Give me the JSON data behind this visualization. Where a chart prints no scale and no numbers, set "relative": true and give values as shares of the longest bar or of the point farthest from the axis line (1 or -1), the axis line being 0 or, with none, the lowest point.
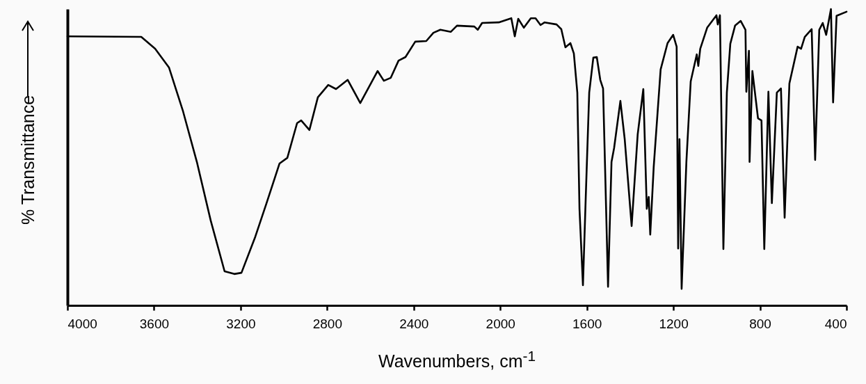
{
  "chart_data": {
    "type": "line",
    "xlabel": "Wavenumbers, cm$^{-1}$",
    "ylabel": "% Transmittance",
    "relative": true,
    "xlim": [
      4000,
      400
    ],
    "xticks": [
      4000,
      3600,
      3200,
      2800,
      2400,
      2000,
      1600,
      1200,
      800,
      400
    ],
    "line_style": "solid",
    "x": [
      4000,
      3659,
      3595,
      3531,
      3466,
      3402,
      3338,
      3274,
      3229,
      3196,
      3132,
      3081,
      3020,
      2984,
      2939,
      2920,
      2882,
      2843,
      2795,
      2759,
      2705,
      2647,
      2567,
      2538,
      2506,
      2470,
      2438,
      2393,
      2342,
      2309,
      2277,
      2229,
      2200,
      2120,
      2104,
      2084,
      2007,
      1949,
      1933,
      1917,
      1891,
      1859,
      1837,
      1814,
      1795,
      1740,
      1718,
      1699,
      1676,
      1660,
      1644,
      1634,
      1618,
      1605,
      1589,
      1570,
      1554,
      1538,
      1525,
      1515,
      1502,
      1486,
      1474,
      1445,
      1425,
      1393,
      1365,
      1339,
      1323,
      1314,
      1307,
      1291,
      1259,
      1227,
      1201,
      1185,
      1178,
      1172,
      1162,
      1140,
      1120,
      1092,
      1085,
      1076,
      1044,
      1001,
      995,
      985,
      969,
      953,
      937,
      915,
      889,
      867,
      863,
      851,
      848,
      835,
      809,
      793,
      780,
      761,
      745,
      722,
      703,
      686,
      664,
      626,
      610,
      593,
      561,
      545,
      526,
      510,
      494,
      472,
      462,
      446,
      400
    ],
    "series": [
      {
        "color": "#000000",
        "values": [
          0.908,
          0.906,
          0.866,
          0.803,
          0.655,
          0.484,
          0.286,
          0.115,
          0.106,
          0.11,
          0.232,
          0.343,
          0.479,
          0.498,
          0.615,
          0.624,
          0.592,
          0.702,
          0.744,
          0.73,
          0.761,
          0.683,
          0.791,
          0.758,
          0.768,
          0.826,
          0.838,
          0.89,
          0.892,
          0.92,
          0.93,
          0.923,
          0.944,
          0.941,
          0.93,
          0.953,
          0.955,
          0.969,
          0.908,
          0.967,
          0.937,
          0.969,
          0.969,
          0.946,
          0.955,
          0.948,
          0.932,
          0.871,
          0.885,
          0.85,
          0.718,
          0.326,
          0.068,
          0.366,
          0.718,
          0.836,
          0.838,
          0.761,
          0.732,
          0.444,
          0.063,
          0.484,
          0.531,
          0.69,
          0.561,
          0.268,
          0.577,
          0.73,
          0.326,
          0.366,
          0.239,
          0.467,
          0.796,
          0.885,
          0.913,
          0.873,
          0.192,
          0.561,
          0.056,
          0.484,
          0.756,
          0.847,
          0.808,
          0.866,
          0.937,
          0.979,
          0.948,
          0.979,
          0.19,
          0.718,
          0.883,
          0.944,
          0.96,
          0.93,
          0.721,
          0.859,
          0.484,
          0.791,
          0.631,
          0.624,
          0.19,
          0.721,
          0.345,
          0.718,
          0.732,
          0.296,
          0.749,
          0.873,
          0.866,
          0.906,
          0.932,
          0.491,
          0.93,
          0.953,
          0.913,
          1.0,
          0.685,
          0.977,
          0.991
        ]
      }
    ]
  }
}
